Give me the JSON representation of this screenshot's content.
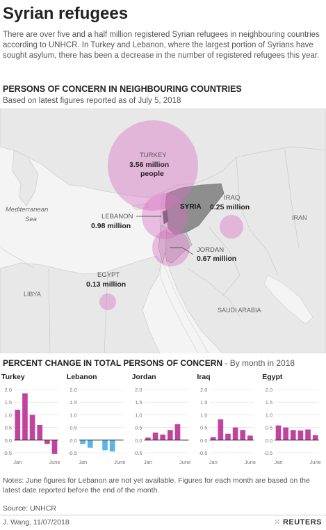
{
  "title": "Syrian refugees",
  "intro": "There are over five and a half million registered Syrian refugees in neighbouring countries according to UNHCR. In Turkey and Lebanon, where the largest portion of Syrians have sought asylum, there has been a decrease in the number of registered refugees this year.",
  "map_section": {
    "heading": "PERSONS OF CONCERN IN NEIGHBOURING COUNTRIES",
    "subheading": "Based on latest figures reported as of July 5, 2018",
    "geo_labels": {
      "med_line1": "Mediterranean",
      "med_line2": "Sea",
      "iran": "IRAN",
      "libya": "LIBYA",
      "saudi": "SAUDI ARABIA",
      "syria": "SYRIA"
    },
    "countries": [
      {
        "name": "TURKEY",
        "value_line1": "3.56 million",
        "value_line2": "people",
        "millions": 3.56
      },
      {
        "name": "LEBANON",
        "value_line1": "0.98 million",
        "millions": 0.98
      },
      {
        "name": "IRAQ",
        "value_line1": "0.25 million",
        "millions": 0.25
      },
      {
        "name": "JORDAN",
        "value_line1": "0.67 million",
        "millions": 0.67
      },
      {
        "name": "EGYPT",
        "value_line1": "0.13 million",
        "millions": 0.13
      }
    ],
    "colors": {
      "bubble": "#d76fc0",
      "syria": "#8e8e8e",
      "land": "#e9e9e9",
      "sea": "#f6f6f6",
      "border": "#c8c8c8"
    }
  },
  "change_section": {
    "heading": "PERCENT CHANGE IN TOTAL PERSONS OF CONCERN",
    "subheading": " - By month in 2018"
  },
  "chart_data": [
    {
      "type": "bar",
      "title": "Turkey",
      "categories": [
        "Jan",
        "Feb",
        "Mar",
        "Apr",
        "May",
        "June"
      ],
      "values": [
        1.2,
        1.85,
        1.0,
        0.6,
        -0.15,
        -0.55
      ],
      "ylim": [
        -0.5,
        2.0
      ],
      "yticks": [
        "2.0",
        "1.5",
        "1.0",
        "0.5",
        "0.0",
        "-0.5"
      ],
      "xticks": [
        "Jan",
        "June"
      ],
      "color": "#c0449e"
    },
    {
      "type": "bar",
      "title": "Lebanon",
      "categories": [
        "Jan",
        "Feb",
        "Mar",
        "Apr",
        "May",
        "June"
      ],
      "values": [
        -0.15,
        -0.3,
        0.0,
        -0.4,
        -0.45,
        null
      ],
      "ylim": [
        -0.5,
        2.0
      ],
      "yticks": [
        "2.0",
        "1.5",
        "1.0",
        "0.5",
        "0.0",
        "-0.5"
      ],
      "xticks": [
        "Jan",
        "June"
      ],
      "color": "#5ab4e5"
    },
    {
      "type": "bar",
      "title": "Jordan",
      "categories": [
        "Jan",
        "Feb",
        "Mar",
        "Apr",
        "May",
        "June"
      ],
      "values": [
        0.1,
        0.3,
        0.22,
        0.4,
        0.63,
        0.0
      ],
      "ylim": [
        -0.5,
        2.0
      ],
      "yticks": [
        "2.0",
        "1.5",
        "1.0",
        "0.5",
        "0.0",
        "-0.5"
      ],
      "xticks": [
        "Jan",
        "June"
      ],
      "color": "#c0449e"
    },
    {
      "type": "bar",
      "title": "Iraq",
      "categories": [
        "Jan",
        "Feb",
        "Mar",
        "Apr",
        "May",
        "June"
      ],
      "values": [
        0.12,
        0.82,
        0.25,
        0.5,
        0.4,
        0.18
      ],
      "ylim": [
        -0.5,
        2.0
      ],
      "yticks": [
        "2.0",
        "1.5",
        "1.0",
        "0.5",
        "0.0",
        "-0.5"
      ],
      "xticks": [
        "Jan",
        "June"
      ],
      "color": "#c0449e"
    },
    {
      "type": "bar",
      "title": "Egypt",
      "categories": [
        "Jan",
        "Feb",
        "Mar",
        "Apr",
        "May",
        "June"
      ],
      "values": [
        0.58,
        0.5,
        0.4,
        0.38,
        0.42,
        0.2
      ],
      "ylim": [
        -0.5,
        2.0
      ],
      "yticks": [
        "2.0",
        "1.5",
        "1.0",
        "0.5",
        "0.0",
        "-0.5"
      ],
      "xticks": [
        "Jan",
        "June"
      ],
      "color": "#c0449e"
    }
  ],
  "notes": "Notes: June figures for Lebanon are not yet available. Figures for each month are based on the latest date reported before the end of the month.",
  "source": "Source: UNHCR",
  "credit": "J. Wang,  11/07/2018",
  "logo": "REUTERS"
}
